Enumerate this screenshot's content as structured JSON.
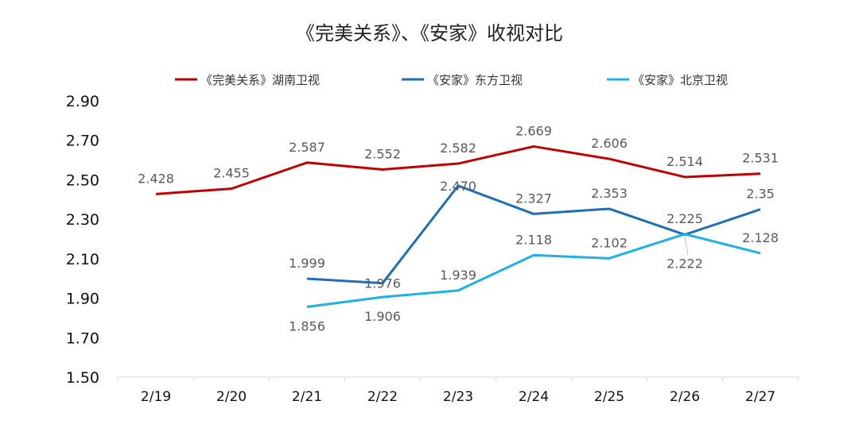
{
  "chart_data": {
    "type": "line",
    "title": "《完美关系》、《安家》收视对比",
    "xlabel": "",
    "ylabel": "",
    "categories": [
      "2/19",
      "2/20",
      "2/21",
      "2/22",
      "2/23",
      "2/24",
      "2/25",
      "2/26",
      "2/27"
    ],
    "ylim": [
      1.5,
      2.9
    ],
    "yticks": [
      "1.50",
      "1.70",
      "1.90",
      "2.10",
      "2.30",
      "2.50",
      "2.70",
      "2.90"
    ],
    "grid": false,
    "legend_position": "top",
    "series": [
      {
        "name": "《完美关系》湖南卫视",
        "color": "#C00000",
        "values": [
          2.428,
          2.455,
          2.587,
          2.552,
          2.582,
          2.669,
          2.606,
          2.514,
          2.531
        ],
        "labels": [
          "2.428",
          "2.455",
          "2.587",
          "2.552",
          "2.582",
          "2.669",
          "2.606",
          "2.514",
          "2.531"
        ],
        "label_pos": [
          "above",
          "above",
          "above",
          "above",
          "above",
          "above",
          "above",
          "above",
          "above"
        ]
      },
      {
        "name": "《安家》东方卫视",
        "color": "#1F6FB4",
        "values": [
          null,
          null,
          1.999,
          1.976,
          2.47,
          2.327,
          2.353,
          2.222,
          2.35
        ],
        "labels": [
          null,
          null,
          "1.999",
          "1.976",
          "2.470",
          "2.327",
          "2.353",
          "2.222",
          "2.35"
        ],
        "label_pos": [
          null,
          null,
          "above",
          "at",
          "at",
          "above",
          "above",
          "below",
          "above"
        ]
      },
      {
        "name": "《安家》北京卫视",
        "color": "#1EB0E6",
        "values": [
          null,
          null,
          1.856,
          1.906,
          1.939,
          2.118,
          2.102,
          2.225,
          2.128
        ],
        "labels": [
          null,
          null,
          "1.856",
          "1.906",
          "1.939",
          "2.118",
          "2.102",
          "2.225",
          "2.128"
        ],
        "label_pos": [
          null,
          null,
          "below",
          "below",
          "above",
          "above",
          "above",
          "above",
          "above"
        ]
      }
    ]
  }
}
